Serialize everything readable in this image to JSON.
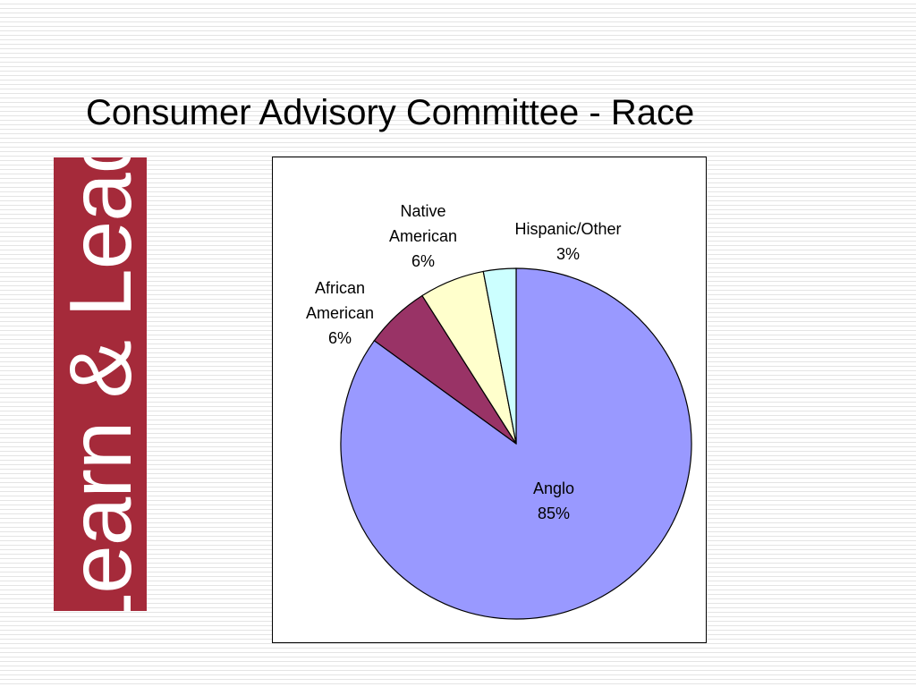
{
  "title": "Consumer Advisory Committee - Race",
  "side_banner": {
    "text": "Learn & Lead",
    "color": "#a52a3a"
  },
  "chart_data": {
    "type": "pie",
    "title": "",
    "start_angle_deg": 0,
    "direction": "clockwise",
    "slices": [
      {
        "label": "Anglo",
        "value": 85,
        "display": "85%",
        "color": "#9999ff"
      },
      {
        "label": "African American",
        "value": 6,
        "display": "6%",
        "color": "#993366"
      },
      {
        "label": "Native American",
        "value": 6,
        "display": "6%",
        "color": "#ffffcc"
      },
      {
        "label": "Hispanic/Other",
        "value": 3,
        "display": "3%",
        "color": "#ccffff"
      }
    ],
    "legend": "none",
    "labels_outside": [
      "African American",
      "Native American",
      "Hispanic/Other"
    ]
  }
}
